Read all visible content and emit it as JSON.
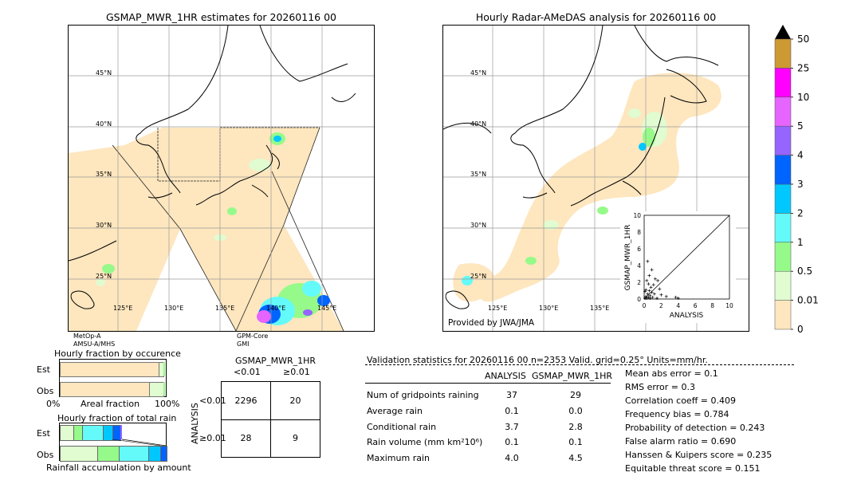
{
  "left_map": {
    "title": "GSMAP_MWR_1HR estimates for 20260116 00",
    "lat_labels": [
      "45°N",
      "40°N",
      "35°N",
      "30°N",
      "25°N"
    ],
    "lon_labels": [
      "125°E",
      "130°E",
      "135°E",
      "140°E",
      "145°E"
    ],
    "sat_labels": [
      "MetOp-A",
      "AMSU-A/MHS",
      "GPM-Core",
      "GMI"
    ]
  },
  "right_map": {
    "title": "Hourly Radar-AMeDAS analysis for 20260116 00",
    "lat_labels": [
      "45°N",
      "40°N",
      "35°N",
      "30°N",
      "25°N"
    ],
    "lon_labels": [
      "125°E",
      "130°E",
      "135°E"
    ],
    "provided_by": "Provided by JWA/JMA"
  },
  "scatter_inset": {
    "xlabel": "ANALYSIS",
    "ylabel": "GSMAP_MWR_1HR",
    "ticks": [
      "0",
      "2",
      "4",
      "6",
      "8",
      "10"
    ]
  },
  "colorbar": {
    "levels": [
      "0",
      "0.01",
      "0.5",
      "1",
      "2",
      "3",
      "4",
      "5",
      "10",
      "25",
      "50"
    ],
    "colors": [
      "#fee6be",
      "#e0fcd0",
      "#96fa8a",
      "#64fafa",
      "#00c8ff",
      "#0064ff",
      "#9664ff",
      "#e664ff",
      "#ff00ff",
      "#cc9933"
    ]
  },
  "fraction_occurrence": {
    "title": "Hourly fraction by occurence",
    "rows": [
      "Est",
      "Obs"
    ],
    "axis_left": "0%",
    "axis_mid": "Areal fraction",
    "axis_right": "100%"
  },
  "fraction_total": {
    "title": "Hourly fraction of total rain",
    "rows": [
      "Est",
      "Obs"
    ],
    "axis_caption": "Rainfall accumulation by amount"
  },
  "contingency": {
    "title": "GSMAP_MWR_1HR",
    "col_headers": [
      "<0.01",
      "≥0.01"
    ],
    "row_headers": [
      "<0.01",
      "≥0.01"
    ],
    "side_label": "ANALYSIS",
    "cells": [
      [
        "2296",
        "20"
      ],
      [
        "28",
        "9"
      ]
    ]
  },
  "validation": {
    "header": "Validation statistics for 20260116 00  n=2353 Valid. grid=0.25° Units=mm/hr.",
    "col_analysis": "ANALYSIS",
    "col_gsmap": "GSMAP_MWR_1HR",
    "rows": [
      {
        "label": "Num of gridpoints raining",
        "analysis": "37",
        "gsmap": "29"
      },
      {
        "label": "Average rain",
        "analysis": "0.1",
        "gsmap": "0.0"
      },
      {
        "label": "Conditional rain",
        "analysis": "3.7",
        "gsmap": "2.8"
      },
      {
        "label": "Rain volume (mm km²10⁶)",
        "analysis": "0.1",
        "gsmap": "0.1"
      },
      {
        "label": "Maximum rain",
        "analysis": "4.0",
        "gsmap": "4.5"
      }
    ],
    "scores": [
      "Mean abs error =    0.1",
      "RMS error =    0.3",
      "Correlation coeff =  0.409",
      "Frequency bias =  0.784",
      "Probability of detection =  0.243",
      "False alarm ratio =  0.690",
      "Hanssen & Kuipers score =  0.235",
      "Equitable threat score =  0.151"
    ]
  },
  "chart_data": {
    "type": "scatter",
    "xlabel": "ANALYSIS",
    "ylabel": "GSMAP_MWR_1HR",
    "xlim": [
      0,
      10
    ],
    "ylim": [
      0,
      10
    ],
    "points": [
      [
        0.1,
        0.1
      ],
      [
        0.2,
        0.3
      ],
      [
        0.3,
        0.1
      ],
      [
        0.4,
        0.6
      ],
      [
        0.5,
        0.2
      ],
      [
        0.6,
        1.0
      ],
      [
        0.7,
        0.4
      ],
      [
        0.8,
        1.4
      ],
      [
        0.9,
        0.8
      ],
      [
        1.0,
        0.2
      ],
      [
        1.1,
        1.7
      ],
      [
        1.2,
        0.6
      ],
      [
        0.3,
        2.2
      ],
      [
        0.5,
        1.8
      ],
      [
        0.9,
        3.5
      ],
      [
        1.3,
        2.4
      ],
      [
        1.6,
        2.2
      ],
      [
        0.2,
        1.1
      ],
      [
        2.0,
        0.5
      ],
      [
        2.6,
        0.3
      ],
      [
        3.7,
        0.2
      ],
      [
        4.0,
        0.1
      ],
      [
        0.1,
        0.9
      ],
      [
        0.7,
        0.1
      ],
      [
        1.5,
        0.1
      ],
      [
        0.4,
        4.5
      ],
      [
        0.6,
        2.8
      ],
      [
        1.8,
        1.2
      ]
    ]
  }
}
